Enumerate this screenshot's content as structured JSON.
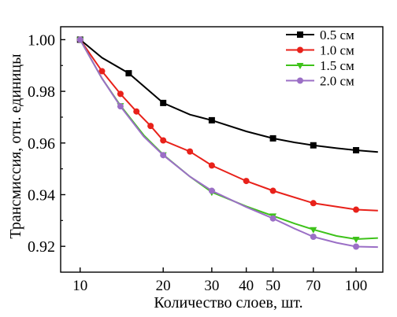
{
  "chart_data": {
    "type": "line",
    "title": "",
    "xlabel": "Количество слоев, шт.",
    "ylabel": "Трансмиссия, отн. единицы",
    "xscale": "log",
    "xlim": [
      8.5,
      125
    ],
    "ylim": [
      0.91,
      1.005
    ],
    "xticks": [
      10,
      20,
      30,
      40,
      50,
      70,
      100
    ],
    "xtick_labels": [
      "10",
      "20",
      "30",
      "40",
      "50",
      "70",
      "100"
    ],
    "yticks": [
      0.92,
      0.94,
      0.96,
      0.98,
      1.0
    ],
    "ytick_labels": [
      "0.92",
      "0.94",
      "0.96",
      "0.98",
      "1.00"
    ],
    "grid": false,
    "legend_position": "top-right",
    "series": [
      {
        "name": "0.5 см",
        "color": "#000000",
        "marker": "square",
        "x": [
          10,
          15,
          20,
          30,
          50,
          70,
          100
        ],
        "y": [
          1.0,
          0.987,
          0.9755,
          0.9688,
          0.9618,
          0.9591,
          0.9572
        ],
        "curve_x": [
          10,
          12,
          15,
          20,
          25,
          30,
          40,
          50,
          60,
          70,
          85,
          100,
          120
        ],
        "curve_y": [
          1.0,
          0.993,
          0.987,
          0.9755,
          0.971,
          0.9688,
          0.9645,
          0.9618,
          0.9602,
          0.9591,
          0.958,
          0.9572,
          0.9565
        ]
      },
      {
        "name": "1.0 см",
        "color": "#e8211a",
        "marker": "circle",
        "x": [
          10,
          12,
          14,
          16,
          18,
          20,
          25,
          30,
          40,
          50,
          70,
          100
        ],
        "y": [
          1.0,
          0.9878,
          0.979,
          0.9722,
          0.9666,
          0.961,
          0.9567,
          0.9513,
          0.9453,
          0.9415,
          0.9367,
          0.9342
        ],
        "curve_x": [
          10,
          12,
          14,
          16,
          18,
          20,
          25,
          30,
          40,
          50,
          70,
          100,
          120
        ],
        "curve_y": [
          1.0,
          0.9878,
          0.979,
          0.9722,
          0.9666,
          0.961,
          0.9567,
          0.9513,
          0.9453,
          0.9415,
          0.9367,
          0.9342,
          0.9338
        ]
      },
      {
        "name": "1.5 см",
        "color": "#3ec21a",
        "marker": "triangle-down",
        "x": [
          10,
          14,
          20,
          30,
          50,
          70,
          100
        ],
        "y": [
          1.0,
          0.9745,
          0.9555,
          0.941,
          0.9318,
          0.9265,
          0.9228
        ],
        "curve_x": [
          10,
          12,
          14,
          17,
          20,
          25,
          30,
          40,
          50,
          60,
          70,
          85,
          100,
          120
        ],
        "curve_y": [
          1.0,
          0.985,
          0.9745,
          0.963,
          0.9555,
          0.947,
          0.941,
          0.9355,
          0.9318,
          0.9288,
          0.9265,
          0.924,
          0.9228,
          0.9232
        ]
      },
      {
        "name": "2.0 см",
        "color": "#9b6fc6",
        "marker": "circle",
        "x": [
          10,
          14,
          20,
          30,
          50,
          70,
          100
        ],
        "y": [
          1.0,
          0.9742,
          0.9553,
          0.9415,
          0.9308,
          0.9237,
          0.9199
        ],
        "curve_x": [
          10,
          12,
          14,
          17,
          20,
          25,
          30,
          40,
          50,
          60,
          70,
          85,
          100,
          120
        ],
        "curve_y": [
          1.0,
          0.985,
          0.9742,
          0.9625,
          0.9553,
          0.947,
          0.9415,
          0.9352,
          0.9308,
          0.9268,
          0.9237,
          0.9214,
          0.9199,
          0.9197
        ]
      }
    ]
  }
}
